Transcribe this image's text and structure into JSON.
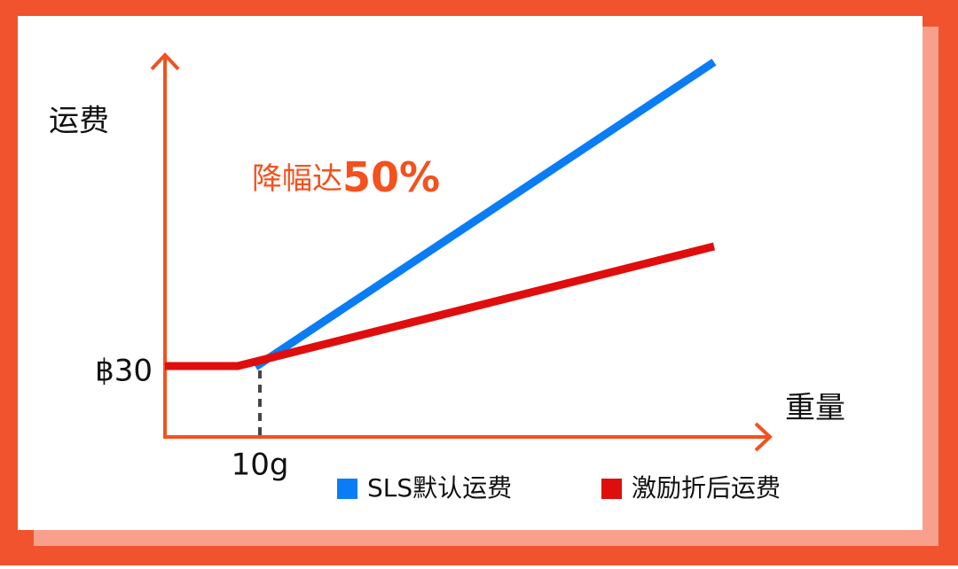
{
  "y_axis_label": "运费",
  "x_axis_label": "重量",
  "y_tick_label": "฿30",
  "x_tick_label": "10g",
  "annotation": {
    "text": "降幅达",
    "emphasis": "50%"
  },
  "legend": [
    "SLS默认运费",
    "激励折后运费"
  ]
}
